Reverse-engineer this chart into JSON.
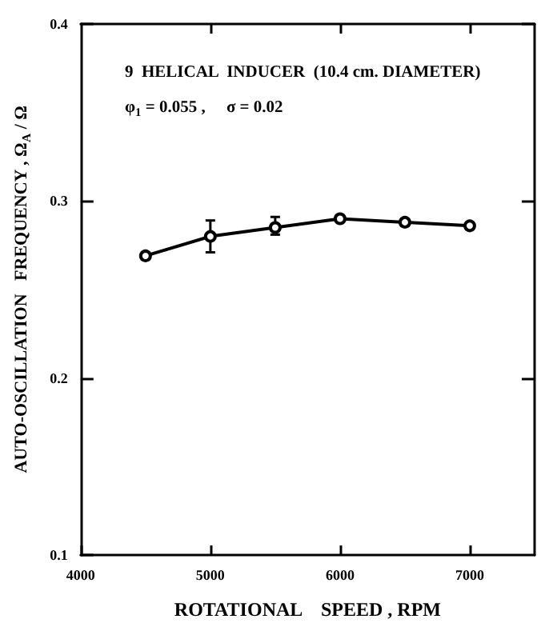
{
  "chart_data": {
    "type": "line",
    "xlabel": "ROTATIONAL    SPEED , RPM",
    "ylabel": "AUTO-OSCILLATION   FREQUENCY , Ω$_{A}$ / Ω",
    "annotations": [
      "9  HELICAL  INDUCER  (10.4 cm. DIAMETER)",
      "φ$_{1}$ = 0.055 ,     σ = 0.02"
    ],
    "x": [
      4500,
      5000,
      5500,
      6000,
      6500,
      7000
    ],
    "series": [
      {
        "color": "#000000",
        "values": [
          0.269,
          0.28,
          0.285,
          0.29,
          0.288,
          0.286
        ],
        "errors": [
          null,
          [
            0.271,
            0.289
          ],
          [
            0.281,
            0.291
          ],
          null,
          null,
          null
        ]
      }
    ],
    "xlim": [
      4000,
      7500
    ],
    "xticks": [
      4000,
      5000,
      6000,
      7000
    ],
    "ylim": [
      0.1,
      0.4
    ],
    "yticks": [
      0.1,
      0.2,
      0.3,
      0.4
    ],
    "grid": false,
    "legend": false,
    "marker": "circle",
    "line_style": "solid"
  }
}
